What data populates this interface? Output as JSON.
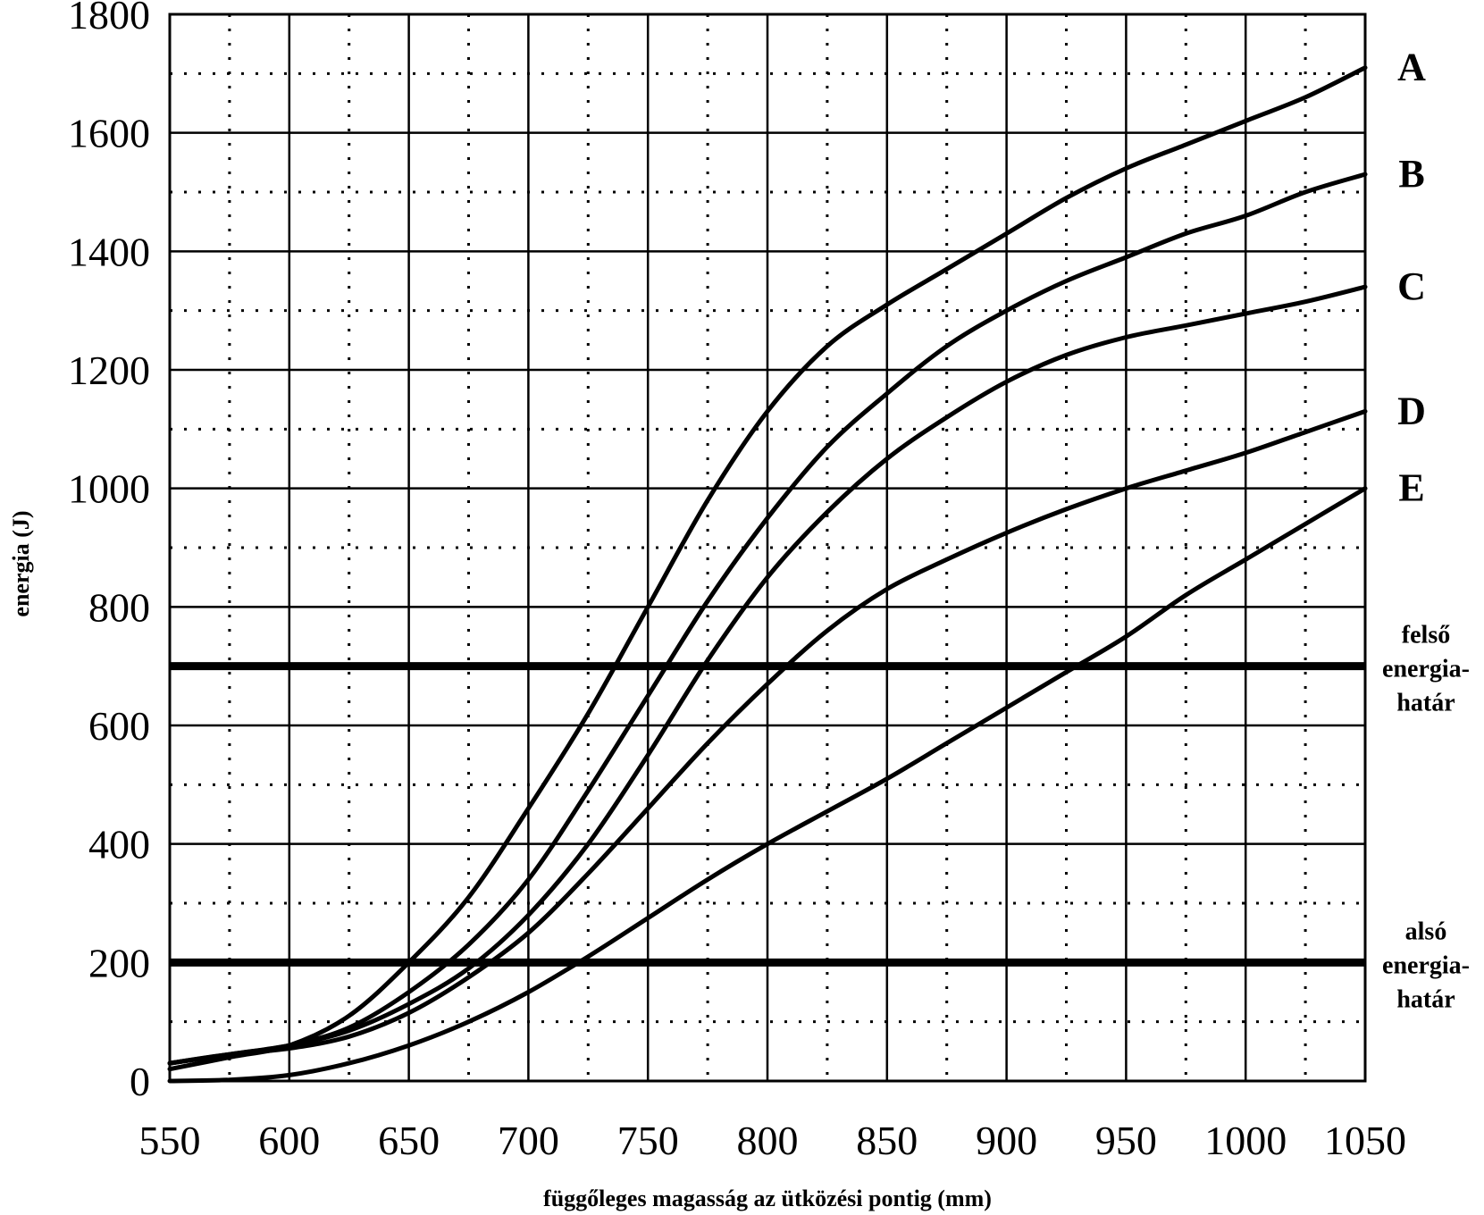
{
  "chart_data": {
    "type": "line",
    "title": "",
    "xlabel": "függőleges magasság az ütközési pontig (mm)",
    "ylabel": "energia (J)",
    "xlim": [
      550,
      1050
    ],
    "ylim": [
      0,
      1800
    ],
    "x_ticks": [
      550,
      600,
      650,
      700,
      750,
      800,
      850,
      900,
      950,
      1000,
      1050
    ],
    "y_ticks": [
      0,
      200,
      400,
      600,
      800,
      1000,
      1200,
      1400,
      1600,
      1800
    ],
    "x_minor_ticks": [
      575,
      625,
      675,
      725,
      775,
      825,
      875,
      925,
      975,
      1025
    ],
    "y_minor_ticks": [
      100,
      300,
      500,
      700,
      900,
      1100,
      1300,
      1500,
      1700
    ],
    "grid": "major solid, minor dotted",
    "series": [
      {
        "name": "A",
        "x": [
          550,
          575,
          600,
          625,
          650,
          675,
          700,
          725,
          750,
          775,
          800,
          825,
          850,
          875,
          900,
          925,
          950,
          975,
          1000,
          1025,
          1050
        ],
        "y": [
          20,
          40,
          60,
          110,
          200,
          310,
          460,
          620,
          800,
          980,
          1130,
          1240,
          1310,
          1370,
          1430,
          1490,
          1540,
          1580,
          1620,
          1660,
          1710
        ]
      },
      {
        "name": "B",
        "x": [
          550,
          575,
          600,
          625,
          650,
          675,
          700,
          725,
          750,
          775,
          800,
          825,
          850,
          875,
          900,
          925,
          950,
          975,
          1000,
          1025,
          1050
        ],
        "y": [
          30,
          45,
          60,
          90,
          150,
          230,
          340,
          490,
          650,
          810,
          950,
          1070,
          1160,
          1240,
          1300,
          1350,
          1390,
          1430,
          1460,
          1500,
          1530
        ]
      },
      {
        "name": "C",
        "x": [
          550,
          575,
          600,
          625,
          650,
          675,
          700,
          725,
          750,
          775,
          800,
          825,
          850,
          875,
          900,
          925,
          950,
          975,
          1000,
          1025,
          1050
        ],
        "y": [
          30,
          45,
          60,
          85,
          130,
          190,
          280,
          400,
          550,
          710,
          850,
          960,
          1050,
          1120,
          1180,
          1225,
          1255,
          1275,
          1295,
          1315,
          1340
        ]
      },
      {
        "name": "D",
        "x": [
          550,
          575,
          600,
          625,
          650,
          675,
          700,
          725,
          750,
          775,
          800,
          825,
          850,
          875,
          900,
          925,
          950,
          975,
          1000,
          1025,
          1050
        ],
        "y": [
          30,
          45,
          55,
          75,
          115,
          175,
          250,
          350,
          460,
          570,
          670,
          760,
          830,
          880,
          925,
          965,
          1000,
          1030,
          1060,
          1095,
          1130
        ]
      },
      {
        "name": "E",
        "x": [
          550,
          575,
          600,
          625,
          650,
          675,
          700,
          725,
          750,
          775,
          800,
          825,
          850,
          875,
          900,
          925,
          950,
          975,
          1000,
          1025,
          1050
        ],
        "y": [
          0,
          2,
          10,
          30,
          60,
          100,
          150,
          210,
          275,
          340,
          400,
          455,
          510,
          570,
          630,
          690,
          750,
          820,
          880,
          940,
          1000
        ]
      }
    ],
    "reference_lines": [
      {
        "y": 700,
        "label_lines": [
          "felső",
          "energia-",
          "határ"
        ]
      },
      {
        "y": 200,
        "label_lines": [
          "alsó",
          "energia-",
          "határ"
        ]
      }
    ]
  }
}
